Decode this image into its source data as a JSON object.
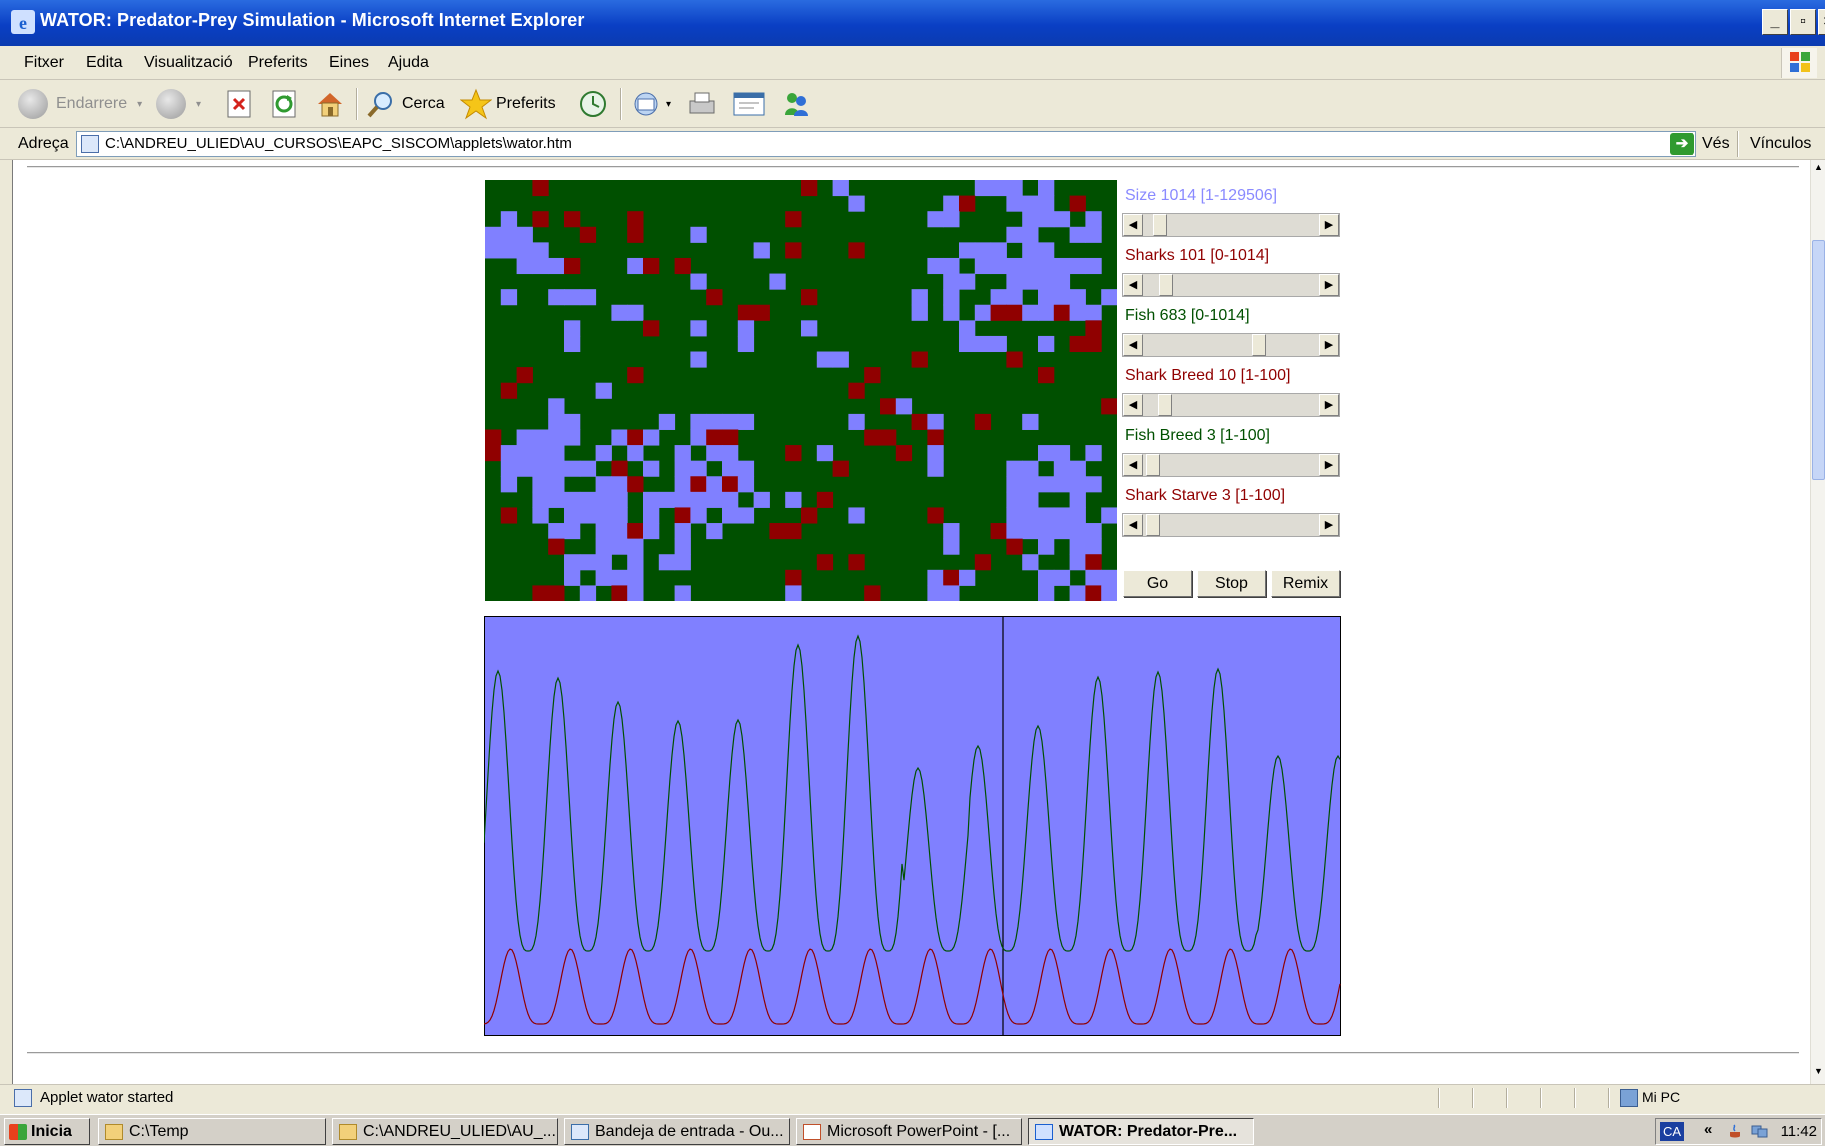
{
  "window": {
    "title": "WATOR: Predator-Prey Simulation - Microsoft Internet Explorer",
    "controls": [
      "_",
      "▫",
      "×"
    ]
  },
  "menu": [
    "Fitxer",
    "Edita",
    "Visualització",
    "Preferits",
    "Eines",
    "Ajuda"
  ],
  "toolbar": {
    "back": "Endarrere",
    "search": "Cerca",
    "favorites": "Preferits"
  },
  "address": {
    "label": "Adreça",
    "url": "C:\\ANDREU_ULIED\\AU_CURSOS\\EAPC_SISCOM\\applets\\wator.htm",
    "go": "Vés",
    "links": "Vínculos"
  },
  "applet": {
    "colors": {
      "water": "#8080ff",
      "fish": "#005000",
      "shark": "#900000",
      "size_text": "#8a8aff",
      "shark_text": "#900000",
      "fish_text": "#005000"
    },
    "controls": [
      {
        "label": "Size 1014 [1-129506]",
        "kind": "size",
        "value": 1014,
        "min": 1,
        "max": 129506,
        "thumb_fraction": 0.06
      },
      {
        "label": "Sharks 101 [0-1014]",
        "kind": "shark",
        "value": 101,
        "min": 0,
        "max": 1014,
        "thumb_fraction": 0.1
      },
      {
        "label": "Fish 683 [0-1014]",
        "kind": "fish",
        "value": 683,
        "min": 0,
        "max": 1014,
        "thumb_fraction": 0.67
      },
      {
        "label": "Shark Breed 10 [1-100]",
        "kind": "shark",
        "value": 10,
        "min": 1,
        "max": 100,
        "thumb_fraction": 0.09
      },
      {
        "label": "Fish Breed 3 [1-100]",
        "kind": "fish",
        "value": 3,
        "min": 1,
        "max": 100,
        "thumb_fraction": 0.02
      },
      {
        "label": "Shark Starve 3 [1-100]",
        "kind": "shark",
        "value": 3,
        "min": 1,
        "max": 100,
        "thumb_fraction": 0.02
      }
    ],
    "buttons": {
      "go": "Go",
      "stop": "Stop",
      "remix": "Remix"
    }
  },
  "status": {
    "text": "Applet wator started",
    "zone": "Mi PC"
  },
  "taskbar": {
    "start": "Inicia",
    "tasks": [
      {
        "label": "C:\\Temp",
        "active": false
      },
      {
        "label": "C:\\ANDREU_ULIED\\AU_...",
        "active": false
      },
      {
        "label": "Bandeja de entrada - Ou...",
        "active": false
      },
      {
        "label": "Microsoft PowerPoint - [...",
        "active": false
      },
      {
        "label": "WATOR: Predator-Pre...",
        "active": true
      }
    ],
    "lang": "CA",
    "clock": "11:42"
  }
}
